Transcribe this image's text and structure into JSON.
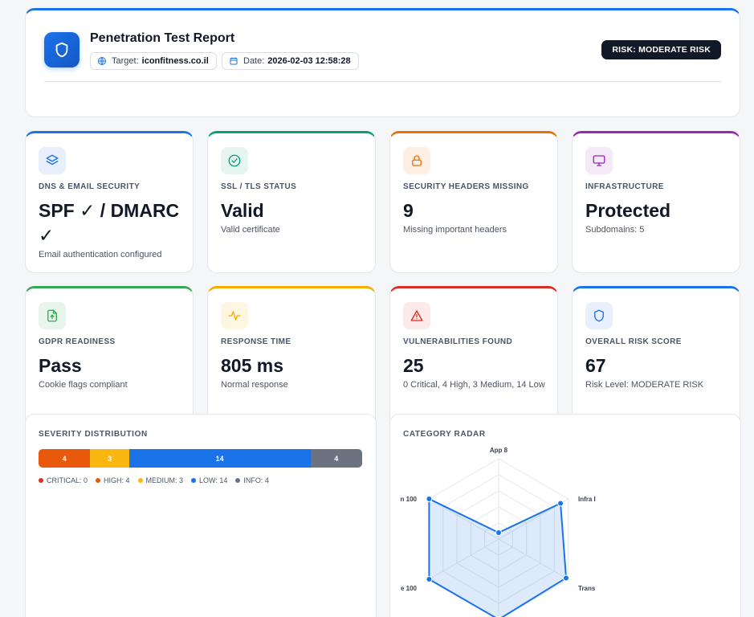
{
  "header": {
    "title": "Penetration Test Report",
    "target_label": "Target:",
    "target_value": "iconfitness.co.il",
    "date_label": "Date:",
    "date_value": "2026-02-03 12:58:28",
    "risk_badge": "RISK: MODERATE RISK"
  },
  "cards": [
    {
      "label": "DNS & EMAIL SECURITY",
      "value": "SPF ✓ / DMARC ✓",
      "sub": "Email authentication configured",
      "accent": "#1a73e8",
      "icon": "layers-icon"
    },
    {
      "label": "SSL / TLS STATUS",
      "value": "Valid",
      "sub": "Valid certificate",
      "accent": "#0f9d77",
      "icon": "check-circle-icon"
    },
    {
      "label": "SECURITY HEADERS MISSING",
      "value": "9",
      "sub": "Missing important headers",
      "accent": "#e8710a",
      "icon": "lock-icon"
    },
    {
      "label": "INFRASTRUCTURE",
      "value": "Protected",
      "sub": "Subdomains: 5",
      "accent": "#9c27b0",
      "icon": "monitor-icon"
    },
    {
      "label": "GDPR READINESS",
      "value": "Pass",
      "sub": "Cookie flags compliant",
      "accent": "#34a853",
      "icon": "file-upload-icon"
    },
    {
      "label": "RESPONSE TIME",
      "value": "805 ms",
      "sub": "Normal response",
      "accent": "#f9ab00",
      "icon": "activity-icon"
    },
    {
      "label": "VULNERABILITIES FOUND",
      "value": "25",
      "sub": "0 Critical, 4 High, 3 Medium, 14 Low",
      "accent": "#d93025",
      "icon": "warning-icon"
    },
    {
      "label": "OVERALL RISK SCORE",
      "value": "67",
      "sub": "Risk Level: MODERATE RISK",
      "accent": "#1a73e8",
      "icon": "shield-icon"
    }
  ],
  "severity": {
    "title": "SEVERITY DISTRIBUTION",
    "segments": [
      {
        "name": "HIGH",
        "value": 4,
        "label": "4",
        "color": "#e8590c"
      },
      {
        "name": "MEDIUM",
        "value": 3,
        "label": "3",
        "color": "#f9b70f"
      },
      {
        "name": "LOW",
        "value": 14,
        "label": "14",
        "color": "#1a73e8"
      },
      {
        "name": "INFO",
        "value": 4,
        "label": "4",
        "color": "#6b7280"
      }
    ],
    "legend": [
      {
        "text": "CRITICAL: 0",
        "color": "#d93025"
      },
      {
        "text": "HIGH: 4",
        "color": "#e8590c"
      },
      {
        "text": "MEDIUM: 3",
        "color": "#f9b70f"
      },
      {
        "text": "LOW: 14",
        "color": "#1a73e8"
      },
      {
        "text": "INFO: 4",
        "color": "#6b7280"
      }
    ]
  },
  "radar": {
    "title": "CATEGORY RADAR",
    "labels": [
      "App 8",
      "Infra I",
      "Trans",
      "",
      "e 100",
      "n 100"
    ]
  },
  "chart_data": {
    "type": "radar",
    "categories": [
      "App",
      "Infra",
      "Trans",
      "",
      "",
      ""
    ],
    "values": [
      8,
      89,
      97,
      100,
      100,
      100
    ],
    "ylim": [
      0,
      100
    ]
  }
}
